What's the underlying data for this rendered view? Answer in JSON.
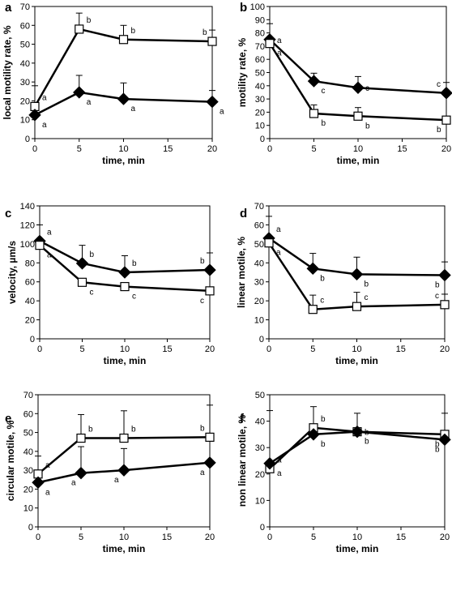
{
  "figure_description": "Six-panel line chart figure (a–f) of sperm motility parameters versus time",
  "chart_data": [
    {
      "panel": "a",
      "type": "line",
      "xlabel": "time, min",
      "ylabel": "local motility rate, %",
      "xlim": [
        0,
        20
      ],
      "xticks": [
        0,
        5,
        10,
        15,
        20
      ],
      "ylim": [
        0,
        70
      ],
      "yticks": [
        0,
        10,
        20,
        30,
        40,
        50,
        60,
        70
      ],
      "grid": false,
      "legend": "none",
      "series": [
        {
          "marker": "open-square",
          "x": [
            0,
            5,
            10,
            20
          ],
          "y": [
            17,
            58,
            52.5,
            51.5
          ],
          "err": [
            11,
            8.5,
            7.5,
            6
          ],
          "labels": [
            "a",
            "b",
            "b",
            "b"
          ]
        },
        {
          "marker": "filled-diamond",
          "x": [
            0,
            5,
            10,
            20
          ],
          "y": [
            12.5,
            24.5,
            21,
            19.5
          ],
          "err": [
            0,
            9,
            8.5,
            6
          ],
          "labels": [
            "a",
            "a",
            "a",
            "a"
          ]
        }
      ]
    },
    {
      "panel": "b",
      "type": "line",
      "xlabel": "time, min",
      "ylabel": "motility rate, %",
      "xlim": [
        0,
        20
      ],
      "xticks": [
        0,
        5,
        10,
        15,
        20
      ],
      "ylim": [
        0,
        100
      ],
      "yticks": [
        0,
        10,
        20,
        30,
        40,
        50,
        60,
        70,
        80,
        90,
        100
      ],
      "grid": false,
      "legend": "none",
      "series": [
        {
          "marker": "filled-diamond",
          "x": [
            0,
            5,
            10,
            20
          ],
          "y": [
            75,
            43.5,
            38.5,
            34.5
          ],
          "err": [
            12,
            6,
            8.5,
            8
          ],
          "labels": [
            "a",
            "c",
            "c",
            "c"
          ]
        },
        {
          "marker": "open-square",
          "x": [
            0,
            5,
            10,
            20
          ],
          "y": [
            72,
            19,
            17,
            14
          ],
          "err": [
            0,
            6.5,
            6.5,
            0
          ],
          "labels": [
            "a",
            "b",
            "b",
            "b"
          ]
        }
      ]
    },
    {
      "panel": "c",
      "type": "line",
      "xlabel": "time, min",
      "ylabel": "velocity,  µm/s",
      "xlim": [
        0,
        20
      ],
      "xticks": [
        0,
        5,
        10,
        15,
        20
      ],
      "ylim": [
        0,
        140
      ],
      "yticks": [
        0,
        20,
        40,
        60,
        80,
        100,
        120,
        140
      ],
      "grid": false,
      "legend": "none",
      "series": [
        {
          "marker": "filled-diamond",
          "x": [
            0,
            5,
            10,
            20
          ],
          "y": [
            103,
            79.5,
            70,
            72.5
          ],
          "err": [
            17,
            19,
            17.5,
            18
          ],
          "labels": [
            "a",
            "b",
            "b",
            "b"
          ]
        },
        {
          "marker": "open-square",
          "x": [
            0,
            5,
            10,
            20
          ],
          "y": [
            98.5,
            59.5,
            55,
            50.5
          ],
          "err": [
            0,
            0,
            0,
            0
          ],
          "labels": [
            "a",
            "c",
            "c",
            "c"
          ]
        }
      ]
    },
    {
      "panel": "d",
      "type": "line",
      "xlabel": "time, min",
      "ylabel": "linear  motile,  %",
      "xlim": [
        0,
        20
      ],
      "xticks": [
        0,
        5,
        10,
        15,
        20
      ],
      "ylim": [
        0,
        70
      ],
      "yticks": [
        0,
        10,
        20,
        30,
        40,
        50,
        60,
        70
      ],
      "grid": false,
      "legend": "none",
      "series": [
        {
          "marker": "filled-diamond",
          "x": [
            0,
            5,
            10,
            20
          ],
          "y": [
            53,
            37,
            34,
            33.5
          ],
          "err": [
            11.5,
            8,
            9,
            7
          ],
          "labels": [
            "a",
            "b",
            "b",
            "b"
          ]
        },
        {
          "marker": "open-square",
          "x": [
            0,
            5,
            10,
            20
          ],
          "y": [
            50.5,
            15.5,
            17,
            18
          ],
          "err": [
            0,
            7.5,
            7.5,
            5.5
          ],
          "labels": [
            "a",
            "c",
            "c",
            "c"
          ]
        }
      ]
    },
    {
      "panel": "e",
      "type": "line",
      "xlabel": "time, min",
      "ylabel": "circular motile, %",
      "xlim": [
        0,
        20
      ],
      "xticks": [
        0,
        5,
        10,
        15,
        20
      ],
      "ylim": [
        0,
        70
      ],
      "yticks": [
        0,
        10,
        20,
        30,
        40,
        50,
        60,
        70
      ],
      "grid": false,
      "legend": "none",
      "series": [
        {
          "marker": "open-square",
          "x": [
            0,
            5,
            10,
            20
          ],
          "y": [
            28,
            47,
            47,
            47.5
          ],
          "err": [
            9.5,
            12.5,
            14.5,
            17
          ],
          "labels": [
            "a",
            "b",
            "b",
            "b"
          ]
        },
        {
          "marker": "filled-diamond",
          "x": [
            0,
            5,
            10,
            20
          ],
          "y": [
            23.5,
            28.5,
            30,
            34
          ],
          "err": [
            0,
            14,
            11.5,
            0
          ],
          "labels": [
            "a",
            "a",
            "a",
            "a"
          ]
        }
      ]
    },
    {
      "panel": "f",
      "type": "line",
      "xlabel": "time, min",
      "ylabel": "non linear motile, %",
      "xlim": [
        0,
        20
      ],
      "xticks": [
        0,
        5,
        10,
        15,
        20
      ],
      "ylim": [
        0,
        50
      ],
      "yticks": [
        0,
        10,
        20,
        30,
        40,
        50
      ],
      "grid": false,
      "legend": "none",
      "series": [
        {
          "marker": "open-square",
          "x": [
            0,
            5,
            10,
            20
          ],
          "y": [
            22,
            37.5,
            36,
            35
          ],
          "err": [
            22,
            8,
            7,
            8
          ],
          "labels": [
            "a",
            "b",
            "b",
            "b"
          ]
        },
        {
          "marker": "filled-diamond",
          "x": [
            0,
            5,
            10,
            20
          ],
          "y": [
            24,
            35,
            36,
            33
          ],
          "err": [
            0,
            0,
            0,
            0
          ],
          "labels": [
            "a",
            "b",
            "b",
            "b"
          ]
        }
      ]
    }
  ]
}
